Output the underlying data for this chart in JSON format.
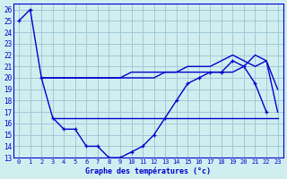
{
  "title": "Graphe des températures (°c)",
  "bg_color": "#d0eef0",
  "grid_color": "#a0c8d8",
  "line_color": "#0000cc",
  "x_ticks": [
    0,
    1,
    2,
    3,
    4,
    5,
    6,
    7,
    8,
    9,
    10,
    11,
    12,
    13,
    14,
    15,
    16,
    17,
    18,
    19,
    20,
    21,
    22,
    23
  ],
  "y_ticks": [
    13,
    14,
    15,
    16,
    17,
    18,
    19,
    20,
    21,
    22,
    23,
    24,
    25,
    26
  ],
  "ylim": [
    13,
    26.5
  ],
  "xlim": [
    -0.5,
    23.5
  ],
  "series": {
    "line1": {
      "x": [
        0,
        1,
        2,
        3,
        4,
        5,
        6,
        7,
        8,
        9,
        10,
        11,
        12,
        13,
        14,
        15,
        16,
        17,
        18,
        19,
        20,
        21,
        22
      ],
      "y": [
        25,
        26,
        20,
        16.5,
        15.5,
        15.5,
        14,
        14,
        13,
        13,
        13.5,
        14,
        15,
        16.5,
        18,
        19.5,
        20,
        20.5,
        20.5,
        21.5,
        21,
        19.5,
        17
      ]
    },
    "line2": {
      "x": [
        2,
        3,
        4,
        5,
        6,
        7,
        8,
        9,
        10,
        11,
        12,
        13,
        14,
        15,
        16,
        17,
        18,
        19,
        20,
        21,
        22,
        23
      ],
      "y": [
        20,
        20,
        20,
        20,
        20,
        20,
        20,
        20,
        20,
        20,
        20,
        20.5,
        20.5,
        20.5,
        20.5,
        20.5,
        20.5,
        20.5,
        21,
        22,
        21.5,
        19
      ]
    },
    "line3": {
      "x": [
        2,
        3,
        4,
        5,
        6,
        7,
        8,
        9,
        10,
        11,
        12,
        13,
        14,
        15,
        16,
        17,
        18,
        19,
        20,
        21,
        22,
        23
      ],
      "y": [
        20,
        20,
        20,
        20,
        20,
        20,
        20,
        20,
        20.5,
        20.5,
        20.5,
        20.5,
        20.5,
        21,
        21,
        21,
        21.5,
        22,
        21.5,
        21,
        21.5,
        17
      ]
    },
    "line4": {
      "x": [
        3,
        23
      ],
      "y": [
        16.5,
        16.5
      ]
    }
  }
}
